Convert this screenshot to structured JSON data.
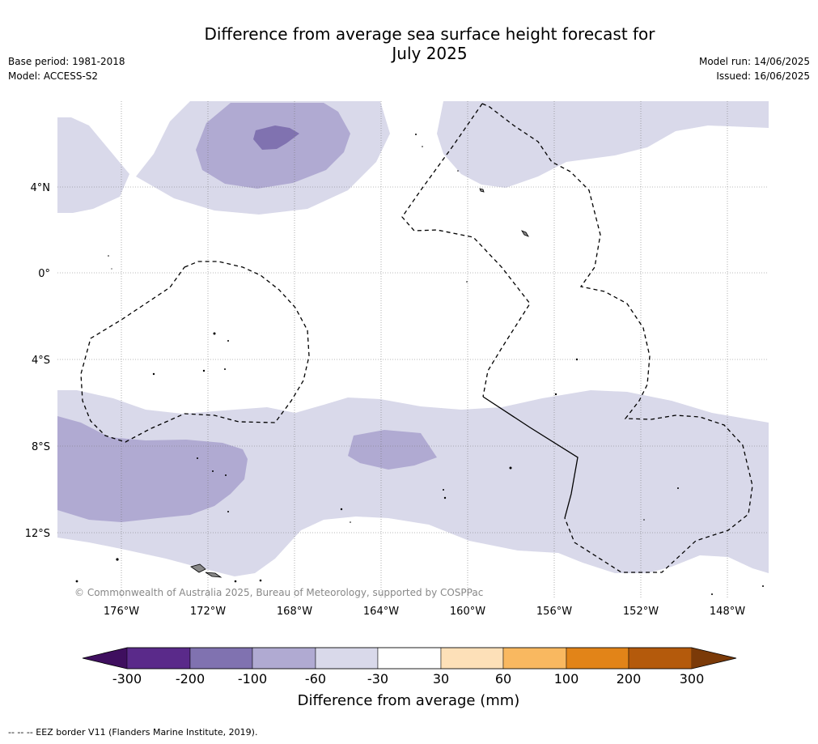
{
  "title_line1": "Difference from average sea surface height forecast for",
  "title_line2": "July 2025",
  "meta_left": {
    "base_period": "Base period: 1981-2018",
    "model": "Model: ACCESS-S2"
  },
  "meta_right": {
    "model_run": "Model run: 14/06/2025",
    "issued": "Issued: 16/06/2025"
  },
  "copyright": "© Commonwealth of Australia 2025, Bureau of Meteorology, supported by COSPPac",
  "lat_ticks": [
    "4°N",
    "0°",
    "4°S",
    "8°S",
    "12°S"
  ],
  "lon_ticks": [
    "176°W",
    "172°W",
    "168°W",
    "164°W",
    "160°W",
    "156°W",
    "152°W",
    "148°W"
  ],
  "colorbar": {
    "label": "Difference from average (mm)",
    "ticks": [
      "-300",
      "-200",
      "-100",
      "-60",
      "-30",
      "30",
      "60",
      "100",
      "200",
      "300"
    ],
    "colors": [
      "#3f0f5f",
      "#5a2a8a",
      "#8072b0",
      "#b0aad2",
      "#d9d9ea",
      "#ffffff",
      "#fde0b8",
      "#f9b860",
      "#e28418",
      "#b45a0c",
      "#7b3a08"
    ]
  },
  "footer": "--  --  -- EEZ border V11 (Flanders Marine Institute, 2019)."
}
